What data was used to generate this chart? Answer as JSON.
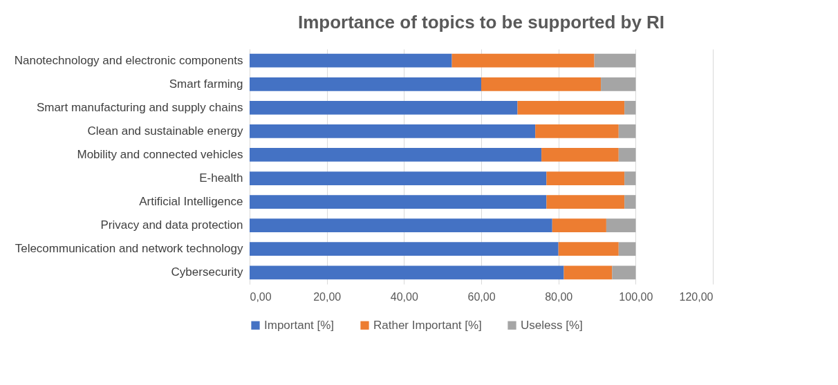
{
  "chart_data": {
    "type": "bar",
    "orientation": "horizontal",
    "stacked": true,
    "title": "Importance of topics to be supported by RI",
    "categories": [
      "Nanotechnology and electronic components",
      "Smart farming",
      "Smart manufacturing and supply chains",
      "Clean and sustainable energy",
      "Mobility and connected vehicles",
      "E-health",
      "Artificial Intelligence",
      "Privacy and data protection",
      "Telecommunication and network technology",
      "Cybersecurity"
    ],
    "series": [
      {
        "name": "Important [%]",
        "color": "#4472c4",
        "values": [
          52.4,
          60.0,
          69.4,
          74.0,
          75.6,
          76.9,
          76.9,
          78.4,
          80.0,
          81.4
        ]
      },
      {
        "name": "Rather Important [%]",
        "color": "#ed7d31",
        "values": [
          36.9,
          31.0,
          27.7,
          21.6,
          20.0,
          20.2,
          20.2,
          14.0,
          15.6,
          12.5
        ]
      },
      {
        "name": "Useless [%]",
        "color": "#a5a5a5",
        "values": [
          10.7,
          9.0,
          2.9,
          4.4,
          4.4,
          2.9,
          2.9,
          7.6,
          4.4,
          6.1
        ]
      }
    ],
    "xlim": [
      0,
      120
    ],
    "xticks": [
      {
        "value": 0,
        "label": "0,00"
      },
      {
        "value": 20,
        "label": "20,00"
      },
      {
        "value": 40,
        "label": "40,00"
      },
      {
        "value": 60,
        "label": "60,00"
      },
      {
        "value": 80,
        "label": "80,00"
      },
      {
        "value": 100,
        "label": "100,00"
      },
      {
        "value": 120,
        "label": "120,00"
      }
    ],
    "grid": "x",
    "legend": "bottom"
  }
}
